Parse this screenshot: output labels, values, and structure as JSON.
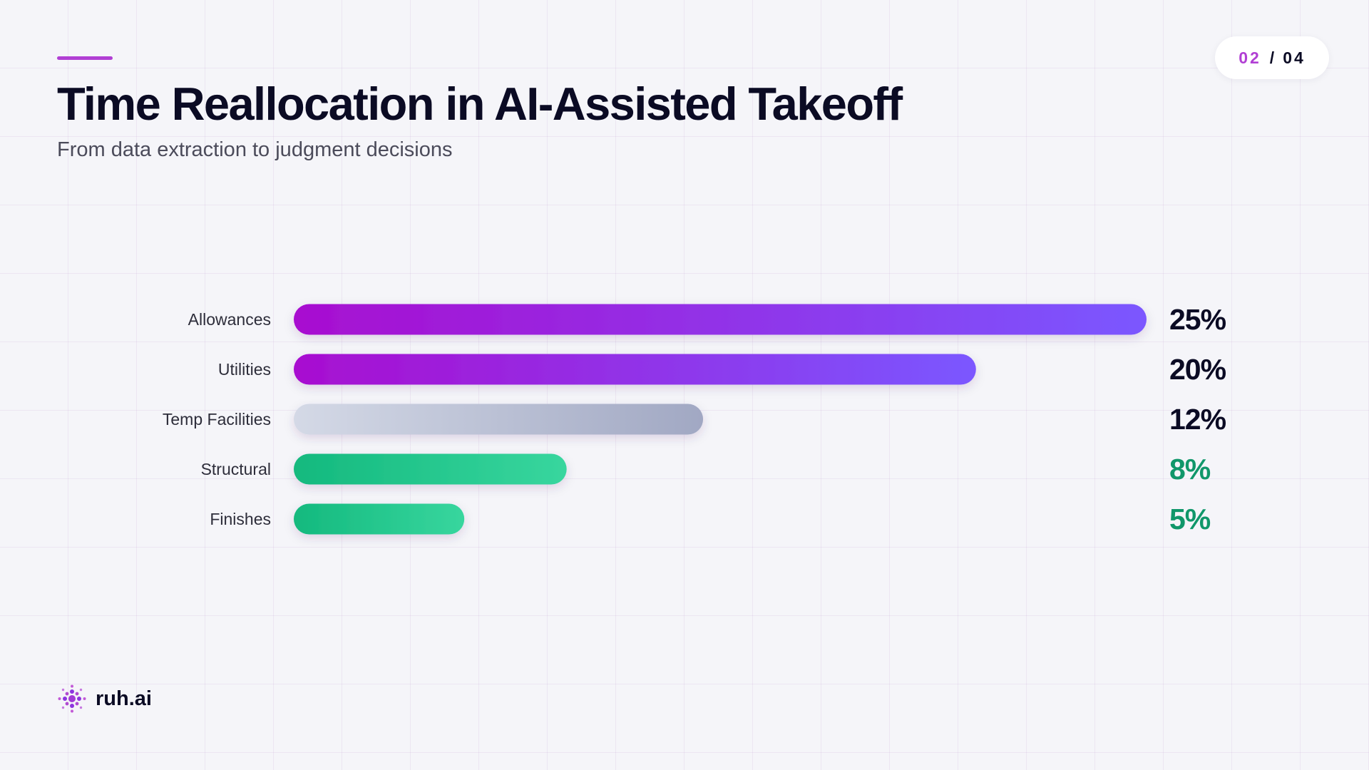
{
  "header": {
    "title": "Time Reallocation in AI-Assisted Takeoff",
    "subtitle": "From data extraction to judgment decisions"
  },
  "pagination": {
    "current": "02",
    "separator": "/",
    "total": "04"
  },
  "brand": {
    "name": "ruh.ai",
    "logo_icon": "dotted-flower-logo-icon"
  },
  "colors": {
    "accent": "#b13fd4",
    "purple_bar_start": "#a80ed0",
    "purple_bar_end": "#7b57ff",
    "gray_bar_start": "#d4d9e6",
    "gray_bar_end": "#a1a8c3",
    "green_bar_start": "#14b97e",
    "green_bar_end": "#38d69e",
    "dark_value": "#0b0b24",
    "green_value": "#10976a"
  },
  "chart_data": {
    "type": "bar",
    "orientation": "horizontal",
    "categories": [
      "Allowances",
      "Utilities",
      "Temp Facilities",
      "Structural",
      "Finishes"
    ],
    "values": [
      25,
      20,
      12,
      8,
      5
    ],
    "value_labels": [
      "25%",
      "20%",
      "12%",
      "8%",
      "5%"
    ],
    "bar_color_groups": [
      "purple",
      "purple",
      "gray",
      "green",
      "green"
    ],
    "value_color_groups": [
      "dark",
      "dark",
      "dark",
      "green",
      "green"
    ],
    "xlim": [
      0,
      25
    ],
    "title": "",
    "xlabel": "",
    "ylabel": "",
    "grid": true,
    "legend": "none"
  }
}
